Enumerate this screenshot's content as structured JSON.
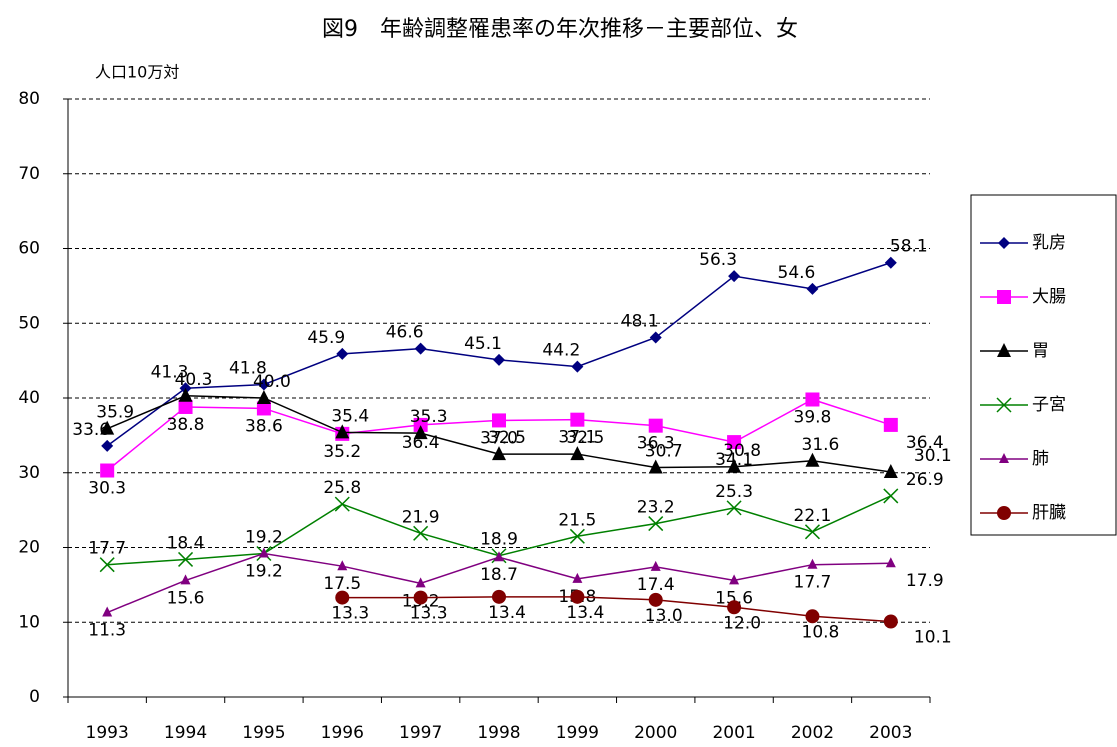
{
  "chart_data": {
    "type": "line",
    "title": "図9　年齢調整罹患率の年次推移－主要部位、女",
    "y_label": "人口10万対",
    "categories": [
      "1993",
      "1994",
      "1995",
      "1996",
      "1997",
      "1998",
      "1999",
      "2000",
      "2001",
      "2002",
      "2003"
    ],
    "ylim": [
      0,
      80
    ],
    "yticks": [
      0,
      10,
      20,
      30,
      40,
      50,
      60,
      70,
      80
    ],
    "grid": true,
    "legend": "right",
    "series": [
      {
        "name": "乳房",
        "color": "#000080",
        "marker": "diamond",
        "values": [
          33.6,
          41.3,
          41.8,
          45.9,
          46.6,
          45.1,
          44.2,
          48.1,
          56.3,
          54.6,
          58.1
        ],
        "value_labels": [
          "33.6",
          "41.3",
          "41.8",
          "45.9",
          "46.6",
          "45.1",
          "44.2",
          "48.1",
          "56.3",
          "54.6",
          "58.1"
        ]
      },
      {
        "name": "大腸",
        "color": "#ff00ff",
        "marker": "square",
        "values": [
          30.3,
          38.8,
          38.6,
          35.2,
          36.4,
          37.0,
          37.1,
          36.3,
          34.1,
          39.8,
          36.4
        ],
        "value_labels": [
          "30.3",
          "38.8",
          "38.6",
          "35.2",
          "36.4",
          "37.0",
          "37.1",
          "36.3",
          "34.1",
          "39.8",
          "36.4"
        ]
      },
      {
        "name": "胃",
        "color": "#000000",
        "marker": "triangle",
        "values": [
          35.9,
          40.3,
          40.0,
          35.4,
          35.3,
          32.5,
          32.5,
          30.7,
          30.8,
          31.6,
          30.1
        ],
        "value_labels": [
          "35.9",
          "40.3",
          "40.0",
          "35.4",
          "35.3",
          "32.5",
          "32.5",
          "30.7",
          "30.8",
          "31.6",
          "30.1"
        ]
      },
      {
        "name": "子宮",
        "color": "#008000",
        "marker": "x",
        "values": [
          17.7,
          18.4,
          19.2,
          25.8,
          21.9,
          18.9,
          21.5,
          23.2,
          25.3,
          22.1,
          26.9
        ],
        "value_labels": [
          "17.7",
          "18.4",
          "19.2",
          "25.8",
          "21.9",
          "18.9",
          "21.5",
          "23.2",
          "25.3",
          "22.1",
          "26.9"
        ]
      },
      {
        "name": "肺",
        "color": "#800080",
        "marker": "smalltriangle",
        "values": [
          11.3,
          15.6,
          19.2,
          17.5,
          15.2,
          18.7,
          15.8,
          17.4,
          15.6,
          17.7,
          17.9
        ],
        "value_labels": [
          "11.3",
          "15.6",
          "19.2",
          "17.5",
          "15.2",
          "18.7",
          "15.8",
          "17.4",
          "15.6",
          "17.7",
          "17.9"
        ]
      },
      {
        "name": "肝臓",
        "color": "#800000",
        "marker": "circle",
        "values": [
          null,
          null,
          null,
          13.3,
          13.3,
          13.4,
          13.4,
          13.0,
          12.0,
          10.8,
          10.1
        ],
        "value_labels": [
          null,
          null,
          null,
          "13.3",
          "13.3",
          "13.4",
          "13.4",
          "13.0",
          "12.0",
          "10.8",
          "10.1"
        ]
      }
    ]
  }
}
